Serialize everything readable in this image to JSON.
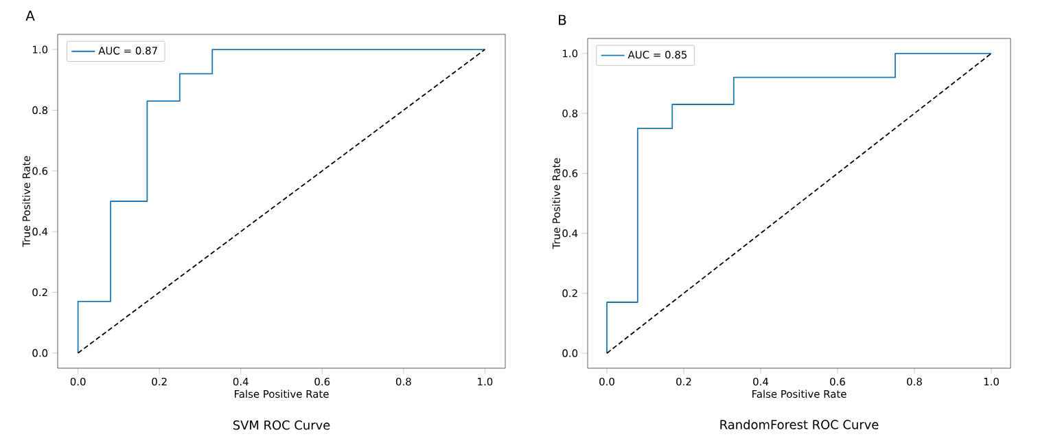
{
  "chart_data": [
    {
      "type": "line",
      "title": "SVM ROC Curve",
      "xlabel": "False Positive Rate",
      "ylabel": "True Positive Rate",
      "annotations": [
        "A"
      ],
      "series": [
        {
          "name": "AUC = 0.87",
          "color": "#1f77b4",
          "line_style": "solid",
          "x": [
            0,
            0,
            0.08,
            0.08,
            0.17,
            0.17,
            0.25,
            0.25,
            0.33,
            0.33,
            1
          ],
          "values": [
            0,
            0.17,
            0.17,
            0.5,
            0.5,
            0.83,
            0.83,
            0.92,
            0.92,
            1,
            1
          ]
        },
        {
          "color": "#000000",
          "line_style": "dashed",
          "x": [
            0,
            1
          ],
          "values": [
            0,
            1
          ]
        }
      ],
      "xlim": [
        -0.05,
        1.05
      ],
      "ylim": [
        -0.05,
        1.05
      ],
      "xticks": [
        {
          "value": 0,
          "label": "0.0"
        },
        {
          "value": 0.2,
          "label": "0.2"
        },
        {
          "value": 0.4,
          "label": "0.4"
        },
        {
          "value": 0.6,
          "label": "0.6"
        },
        {
          "value": 0.8,
          "label": "0.8"
        },
        {
          "value": 1,
          "label": "1.0"
        }
      ],
      "yticks": [
        {
          "value": 0,
          "label": "0.0"
        },
        {
          "value": 0.2,
          "label": "0.2"
        },
        {
          "value": 0.4,
          "label": "0.4"
        },
        {
          "value": 0.6,
          "label": "0.6"
        },
        {
          "value": 0.8,
          "label": "0.8"
        },
        {
          "value": 1,
          "label": "1.0"
        }
      ],
      "legend": "top left",
      "grid": false,
      "marker": "none"
    },
    {
      "type": "line",
      "title": "RandomForest ROC Curve",
      "xlabel": "False Positive Rate",
      "ylabel": "True Positive Rate",
      "annotations": [
        "B"
      ],
      "series": [
        {
          "name": "AUC = 0.85",
          "color": "#1f77b4",
          "line_style": "solid",
          "x": [
            0,
            0,
            0.08,
            0.08,
            0.17,
            0.17,
            0.33,
            0.33,
            0.75,
            0.75,
            1
          ],
          "values": [
            0,
            0.17,
            0.17,
            0.75,
            0.75,
            0.83,
            0.83,
            0.92,
            0.92,
            1,
            1
          ]
        },
        {
          "color": "#000000",
          "line_style": "dashed",
          "x": [
            0,
            1
          ],
          "values": [
            0,
            1
          ]
        }
      ],
      "xlim": [
        -0.05,
        1.05
      ],
      "ylim": [
        -0.05,
        1.05
      ],
      "xticks": [
        {
          "value": 0,
          "label": "0.0"
        },
        {
          "value": 0.2,
          "label": "0.2"
        },
        {
          "value": 0.4,
          "label": "0.4"
        },
        {
          "value": 0.6,
          "label": "0.6"
        },
        {
          "value": 0.8,
          "label": "0.8"
        },
        {
          "value": 1,
          "label": "1.0"
        }
      ],
      "yticks": [
        {
          "value": 0,
          "label": "0.0"
        },
        {
          "value": 0.2,
          "label": "0.2"
        },
        {
          "value": 0.4,
          "label": "0.4"
        },
        {
          "value": 0.6,
          "label": "0.6"
        },
        {
          "value": 0.8,
          "label": "0.8"
        },
        {
          "value": 1,
          "label": "1.0"
        }
      ],
      "legend": "top left",
      "grid": false,
      "marker": "none"
    }
  ]
}
